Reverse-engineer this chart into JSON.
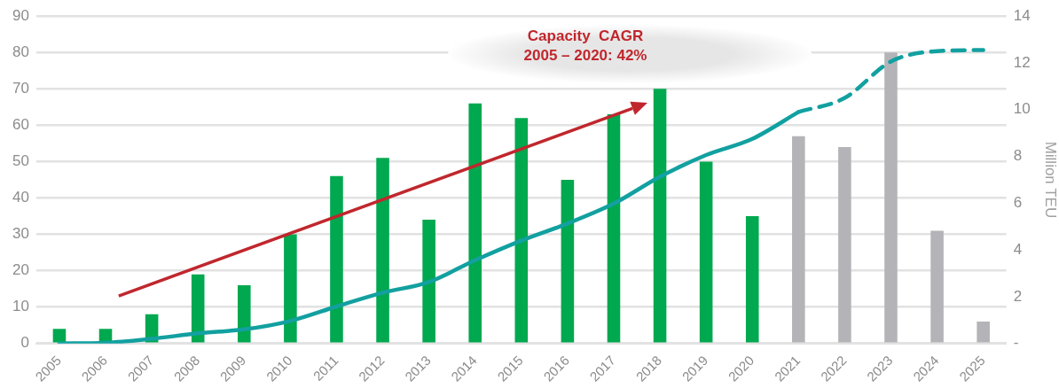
{
  "chart_data": {
    "type": "bar",
    "categories": [
      "2005",
      "2006",
      "2007",
      "2008",
      "2009",
      "2010",
      "2011",
      "2012",
      "2013",
      "2014",
      "2015",
      "2016",
      "2017",
      "2018",
      "2019",
      "2020",
      "2021",
      "2022",
      "2023",
      "2024",
      "2025"
    ],
    "series": [
      {
        "colors": [
          "#00a84f",
          "#00a84f",
          "#00a84f",
          "#00a84f",
          "#00a84f",
          "#00a84f",
          "#00a84f",
          "#00a84f",
          "#00a84f",
          "#00a84f",
          "#00a84f",
          "#00a84f",
          "#00a84f",
          "#00a84f",
          "#00a84f",
          "#00a84f",
          "#b4b4b8",
          "#b4b4b8",
          "#b4b4b8",
          "#b4b4b8",
          "#b4b4b8"
        ],
        "values": [
          4,
          4,
          8,
          19,
          16,
          30,
          46,
          51,
          34,
          66,
          62,
          45,
          63,
          70,
          50,
          35,
          57,
          54,
          80,
          31,
          6
        ]
      },
      {
        "type": "line",
        "axis": "y2",
        "color": "#12a0a0",
        "line_style": "solid",
        "values": [
          0,
          0.03,
          0.2,
          0.43,
          0.6,
          0.96,
          1.58,
          2.17,
          2.63,
          3.56,
          4.4,
          5.13,
          5.98,
          7.13,
          8.06,
          8.75,
          9.9,
          null,
          null,
          null,
          null
        ]
      },
      {
        "type": "line",
        "axis": "y2",
        "color": "#12a0a0",
        "line_style": "dashed",
        "values": [
          null,
          null,
          null,
          null,
          null,
          null,
          null,
          null,
          null,
          null,
          null,
          null,
          null,
          null,
          null,
          null,
          9.9,
          10.5,
          12.06,
          12.5,
          12.55
        ]
      }
    ],
    "ylim": [
      0,
      90
    ],
    "yticks": [
      0,
      10,
      20,
      30,
      40,
      50,
      60,
      70,
      80,
      90
    ],
    "y2lim": [
      0,
      14
    ],
    "y2ticks": [
      {
        "value": 0,
        "label": "-"
      },
      2,
      4,
      6,
      8,
      10,
      12,
      14
    ],
    "y2label": "Million TEU",
    "grid": "y",
    "legend": false,
    "marker": "none",
    "annotations": [
      "Capacity  CAGR\n2005 – 2020: 42%"
    ]
  }
}
